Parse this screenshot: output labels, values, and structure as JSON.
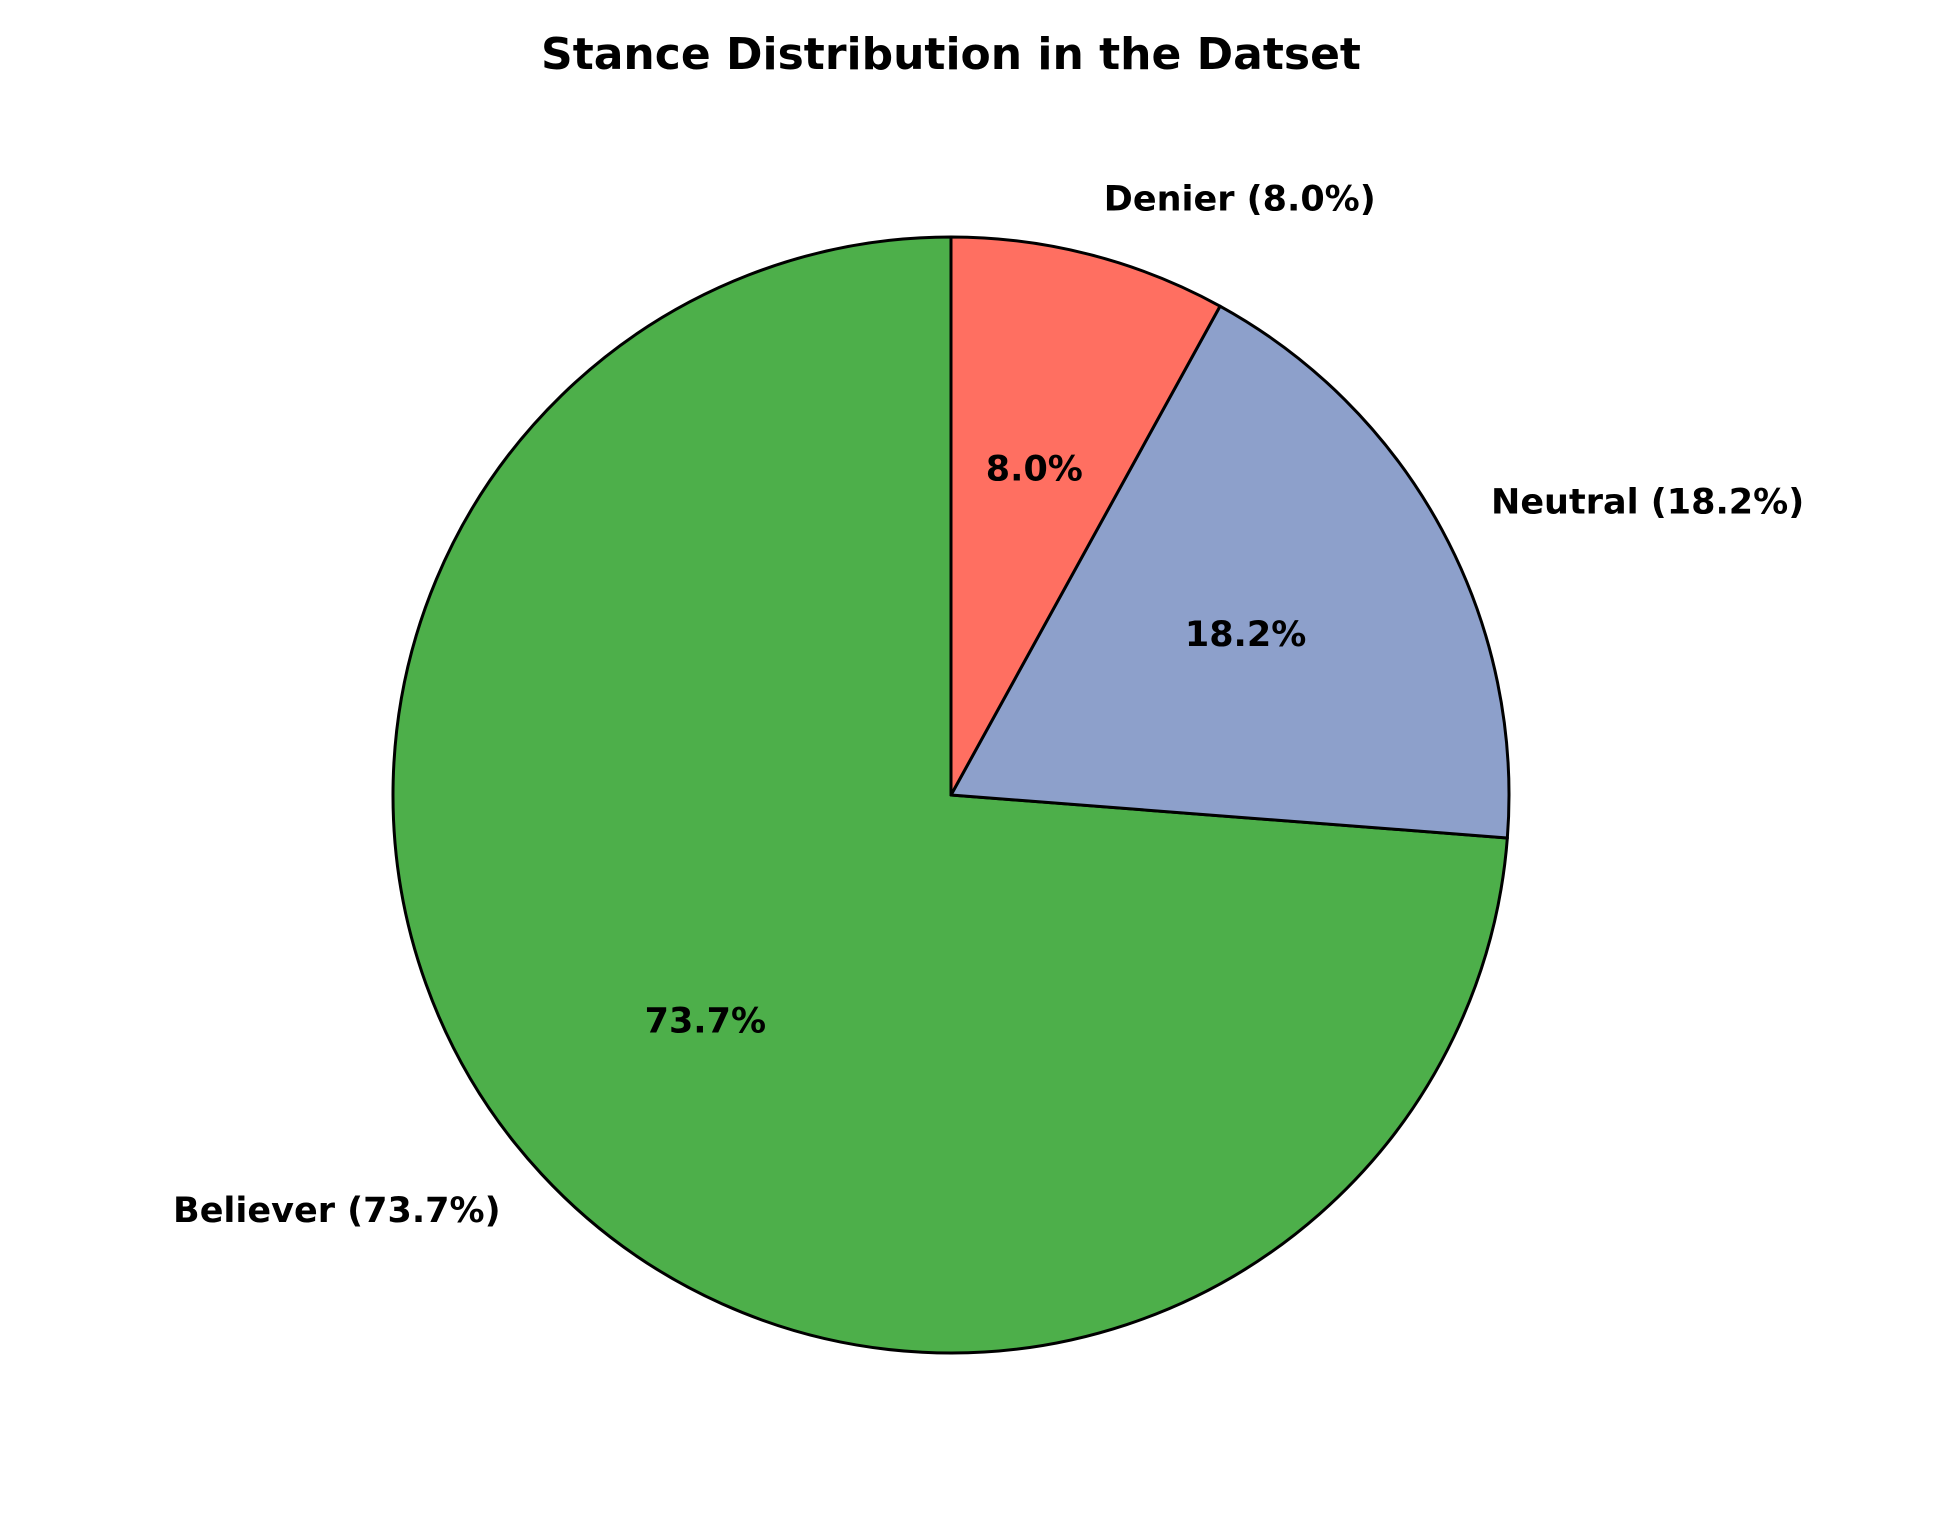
{
  "chart_data": {
    "type": "pie",
    "title": "Stance Distribution in the Datset",
    "categories": [
      "Believer (73.7%)",
      "Neutral (18.2%)",
      "Denier (8.0%)"
    ],
    "values": [
      73.7,
      18.2,
      8.0
    ],
    "value_labels": [
      "73.7%",
      "18.2%",
      "8.0%"
    ],
    "colors": [
      "#4daf4a",
      "#8da0cb",
      "#ff6f61"
    ],
    "start_angle": 90,
    "direction": "counterclockwise"
  }
}
